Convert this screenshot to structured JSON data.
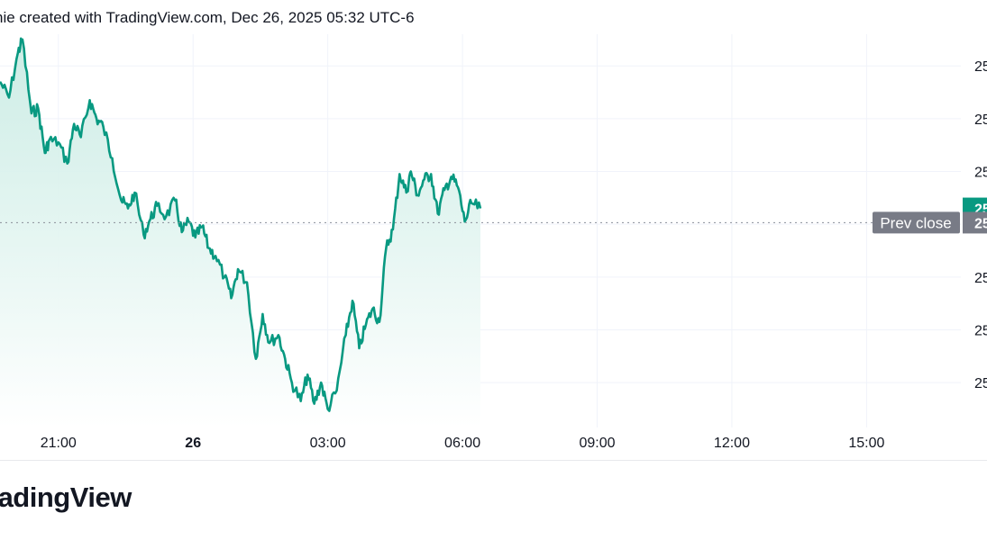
{
  "header": {
    "text": "nie created with TradingView.com, Dec 26, 2025 05:32 UTC-6"
  },
  "brand": {
    "text": "radingView"
  },
  "colors": {
    "line": "#089981",
    "fill_top": "#c8ebe3",
    "fill_bottom": "#ffffff",
    "grid": "#f0f3fa",
    "prev_close_label_bg": "#787b86",
    "last_price_bg": "#089981",
    "dotted": "#8a8e99"
  },
  "chart_data": {
    "type": "area",
    "x_tick_labels": [
      "21:00",
      "26",
      "03:00",
      "06:00",
      "09:00",
      "12:00",
      "15:00"
    ],
    "x_tick_hours": [
      3,
      6,
      9,
      12,
      15,
      18,
      21
    ],
    "x_range_hours": [
      1.7,
      23.1
    ],
    "y_tick_labels": [
      "25",
      "25",
      "25",
      "25",
      "25",
      "25",
      "25"
    ],
    "y_ticks": [
      7,
      6,
      5,
      4,
      3,
      2,
      1
    ],
    "y_range": [
      0.15,
      7.6
    ],
    "prev_close_label": "Prev close",
    "prev_close_value_label": "25",
    "last_price_label": "25",
    "prev_close": 4.03,
    "last_value": 4.3,
    "x_hours": [
      1.7,
      1.9,
      2.1,
      2.2,
      2.4,
      2.55,
      2.7,
      2.8,
      3.0,
      3.2,
      3.35,
      3.5,
      3.7,
      3.85,
      4.0,
      4.2,
      4.4,
      4.55,
      4.7,
      4.9,
      5.05,
      5.2,
      5.4,
      5.6,
      5.75,
      5.9,
      6.05,
      6.2,
      6.35,
      6.5,
      6.7,
      6.85,
      7.0,
      7.2,
      7.4,
      7.55,
      7.7,
      7.9,
      8.05,
      8.2,
      8.4,
      8.55,
      8.7,
      8.85,
      9.0,
      9.2,
      9.4,
      9.55,
      9.7,
      9.85,
      10.0,
      10.15,
      10.3,
      10.45,
      10.6,
      10.75,
      10.85,
      11.0,
      11.15,
      11.3,
      11.45,
      11.6,
      11.75,
      11.9,
      12.05,
      12.2,
      12.4
    ],
    "values": [
      6.7,
      6.4,
      7.25,
      7.5,
      6.1,
      6.2,
      5.35,
      5.6,
      5.55,
      5.15,
      5.9,
      5.65,
      6.35,
      6.0,
      5.85,
      5.25,
      4.45,
      4.3,
      4.6,
      3.8,
      4.1,
      4.35,
      4.15,
      4.45,
      3.85,
      4.05,
      3.75,
      3.95,
      3.55,
      3.4,
      3.0,
      2.6,
      3.15,
      2.9,
      1.45,
      2.3,
      1.75,
      1.9,
      1.45,
      1.0,
      0.65,
      1.15,
      0.6,
      1.0,
      0.5,
      0.85,
      1.9,
      2.55,
      1.65,
      2.1,
      2.4,
      2.15,
      3.55,
      3.9,
      4.95,
      4.6,
      5.0,
      4.55,
      4.85,
      4.95,
      4.2,
      4.65,
      4.9,
      4.7,
      4.05,
      4.4,
      4.3
    ],
    "grid": true,
    "legend": "none"
  }
}
